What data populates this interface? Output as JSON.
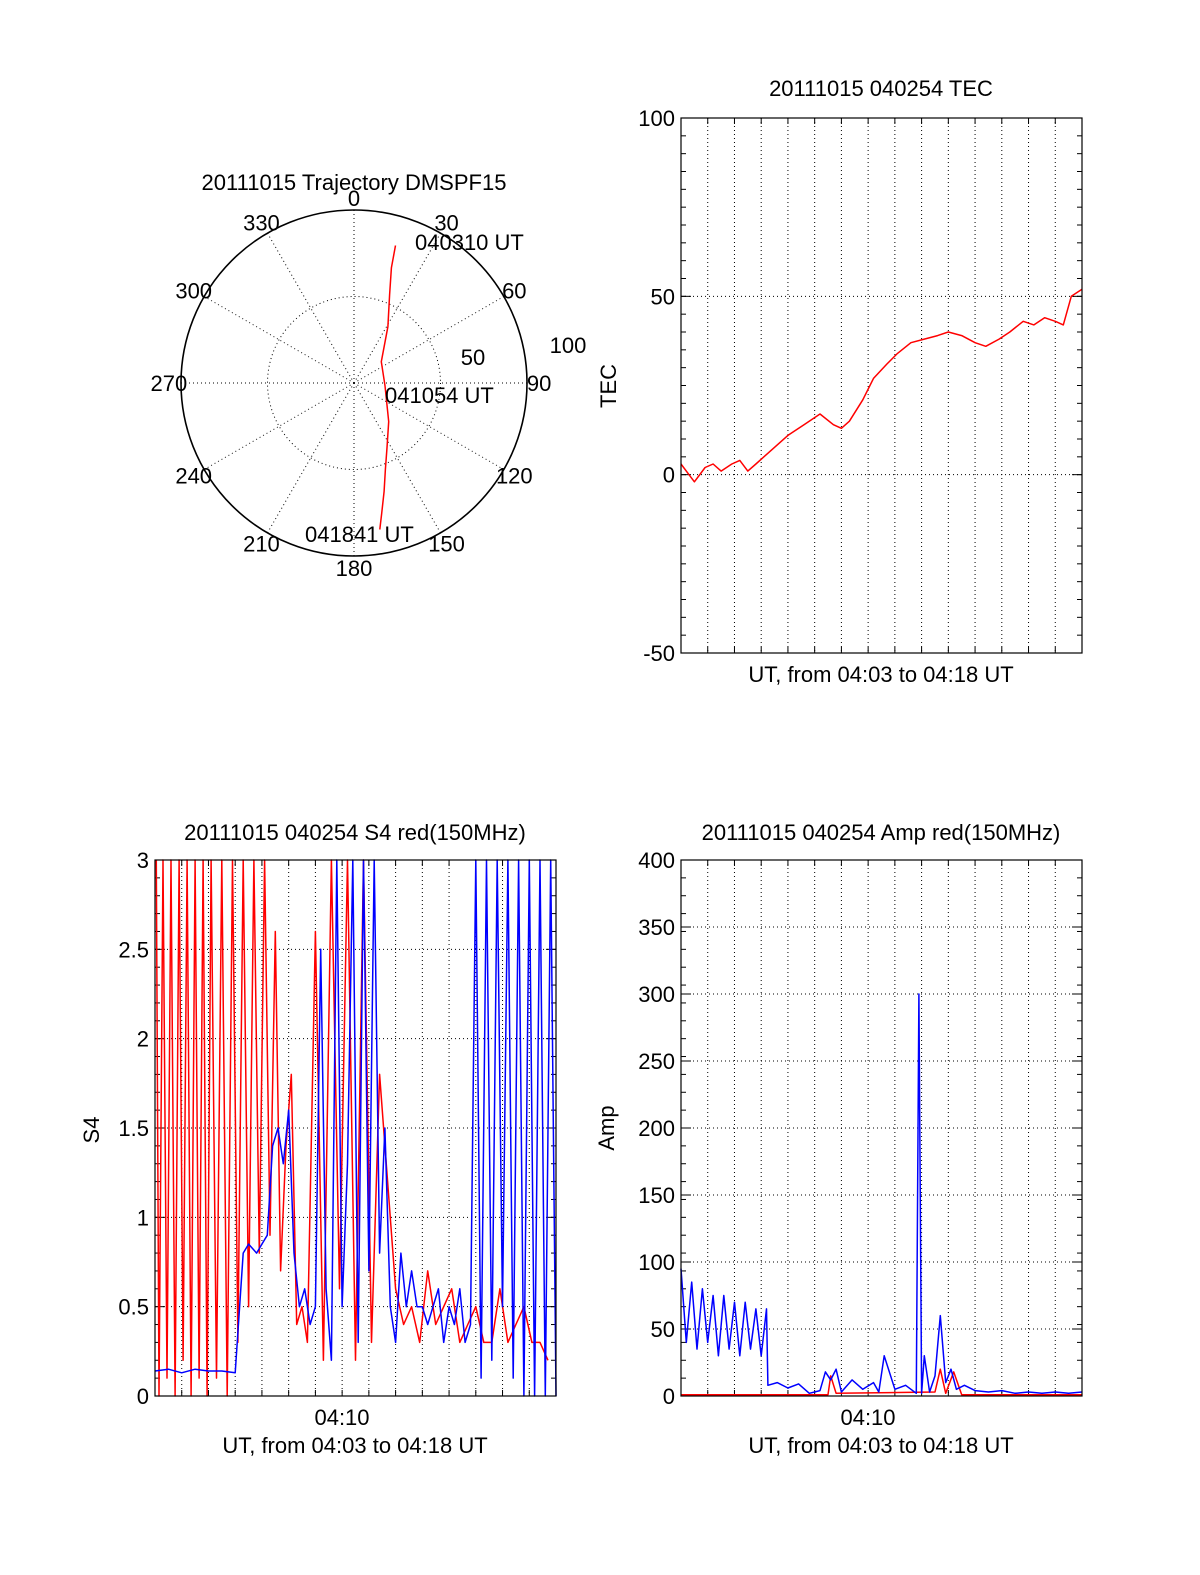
{
  "chart_data": [
    {
      "type": "polar",
      "title": "20111015 Trajectory DMSPF15",
      "azimuth_labels": [
        "0",
        "30",
        "60",
        "90",
        "120",
        "150",
        "180",
        "210",
        "240",
        "270",
        "300",
        "330"
      ],
      "azimuth_degrees": [
        0,
        30,
        60,
        90,
        120,
        150,
        180,
        210,
        240,
        270,
        300,
        330
      ],
      "radial_labels": [
        "50",
        "100"
      ],
      "radial_values": [
        50,
        100
      ],
      "rlim": [
        0,
        100
      ],
      "grid": true,
      "series": [
        {
          "color": "#ff0000",
          "points_az_r": [
            [
              16.8,
              83
            ],
            [
              18,
              70
            ],
            [
              22,
              55
            ],
            [
              31,
              38
            ],
            [
              52,
              20
            ],
            [
              95,
              18
            ],
            [
              138,
              30
            ],
            [
              153,
              42
            ],
            [
              160,
              53
            ],
            [
              164.5,
              65
            ],
            [
              168,
              77
            ],
            [
              170,
              86
            ]
          ]
        }
      ],
      "annotations": [
        {
          "text": "040310 UT",
          "az": 17,
          "r": 85
        },
        {
          "text": "041054 UT",
          "az": 93,
          "r": 39
        },
        {
          "text": "041841 UT",
          "az": 170,
          "r": 88
        }
      ]
    },
    {
      "type": "line",
      "title": "20111015 040254 TEC",
      "xlabel": "UT, from 04:03 to 04:18 UT",
      "ylabel": "TEC",
      "xlim_minutes": [
        0,
        15
      ],
      "ylim": [
        -50,
        100
      ],
      "yticks": [
        "-50",
        "0",
        "50",
        "100"
      ],
      "grid": true,
      "series": [
        {
          "color": "#ff0000",
          "x_minutes": [
            0,
            0.3,
            0.5,
            0.9,
            1.2,
            1.5,
            1.9,
            2.2,
            2.5,
            2.8,
            3.4,
            4.0,
            4.6,
            5.2,
            5.7,
            6.0,
            6.3,
            6.8,
            7.2,
            7.7,
            8.1,
            8.6,
            9.1,
            9.6,
            10.0,
            10.5,
            11.0,
            11.4,
            11.9,
            12.3,
            12.8,
            13.2,
            13.6,
            14.0,
            14.3,
            14.6,
            15.0
          ],
          "y": [
            3,
            0,
            -2,
            2,
            3,
            1,
            3,
            4,
            1,
            3,
            7,
            11,
            14,
            17,
            14,
            13,
            15,
            21,
            27,
            31,
            34,
            37,
            38,
            39,
            40,
            39,
            37,
            36,
            38,
            40,
            43,
            42,
            44,
            43,
            42,
            50,
            52
          ]
        }
      ]
    },
    {
      "type": "line",
      "title": "20111015 040254 S4 red(150MHz)",
      "xlabel": "UT, from 04:03 to 04:18 UT",
      "ylabel": "S4",
      "xlim_minutes": [
        0,
        15
      ],
      "ylim": [
        0,
        3
      ],
      "yticks": [
        "0",
        "0.5",
        "1",
        "1.5",
        "2",
        "2.5",
        "3"
      ],
      "xticks": [
        {
          "minute": 7,
          "label": "04:10"
        }
      ],
      "grid": true,
      "series": [
        {
          "color": "#ff0000",
          "x_minutes": [
            0.05,
            0.15,
            0.3,
            0.45,
            0.6,
            0.75,
            0.9,
            1.05,
            1.2,
            1.35,
            1.5,
            1.65,
            1.8,
            1.95,
            2.1,
            2.3,
            2.5,
            2.7,
            2.9,
            3.1,
            3.3,
            3.5,
            3.7,
            3.9,
            4.1,
            4.3,
            4.5,
            4.7,
            4.9,
            5.1,
            5.3,
            5.5,
            5.7,
            6.0,
            6.3,
            6.6,
            6.9,
            7.2,
            7.5,
            7.8,
            8.1,
            8.4,
            8.7,
            9.0,
            9.3,
            9.6,
            9.9,
            10.2,
            10.5,
            10.8,
            11.1,
            11.4,
            11.7,
            12.0,
            12.3,
            12.6,
            12.9,
            13.2,
            13.5,
            13.8,
            14.1,
            14.4,
            14.7
          ],
          "y": [
            3,
            0,
            3,
            0.1,
            3,
            0,
            3,
            0.2,
            3,
            0,
            3,
            0.1,
            3,
            0,
            3,
            0.1,
            3,
            0,
            3,
            0.3,
            3,
            0.5,
            3,
            0.8,
            3,
            0.9,
            2.6,
            0.7,
            1.4,
            1.8,
            0.4,
            0.5,
            0.3,
            2.6,
            0.2,
            3,
            0.6,
            3,
            0.2,
            3,
            0.3,
            1.8,
            1.2,
            0.6,
            0.4,
            0.5,
            0.3,
            0.7,
            0.4,
            0.5,
            0.6,
            0.3,
            0.4,
            0.5,
            0.3,
            0.3,
            0.6,
            0.3,
            0.4,
            0.5,
            0.3,
            0.3,
            0.2
          ]
        },
        {
          "color": "#0000ff",
          "x_minutes": [
            0,
            0.5,
            1.0,
            1.5,
            2.0,
            2.5,
            3.0,
            3.3,
            3.5,
            3.8,
            4.0,
            4.2,
            4.4,
            4.6,
            4.8,
            5.0,
            5.2,
            5.4,
            5.6,
            5.8,
            6.0,
            6.2,
            6.4,
            6.6,
            6.8,
            7.0,
            7.2,
            7.4,
            7.6,
            7.8,
            8.0,
            8.2,
            8.4,
            8.6,
            8.8,
            9.0,
            9.2,
            9.4,
            9.6,
            9.8,
            10.0,
            10.2,
            10.4,
            10.6,
            10.8,
            11.0,
            11.2,
            11.4,
            11.6,
            11.8,
            12.0,
            12.2,
            12.4,
            12.6,
            12.8,
            13.0,
            13.2,
            13.4,
            13.6,
            13.8,
            14.0,
            14.2,
            14.4,
            14.6,
            14.8,
            15.0
          ],
          "y": [
            0.14,
            0.15,
            0.13,
            0.15,
            0.14,
            0.14,
            0.13,
            0.8,
            0.85,
            0.8,
            0.85,
            0.9,
            1.4,
            1.5,
            1.3,
            1.6,
            0.8,
            0.5,
            0.6,
            0.4,
            0.5,
            2.5,
            0.6,
            0.2,
            3,
            0.5,
            1.3,
            3,
            0.3,
            3,
            0.7,
            3,
            0.8,
            1.5,
            0.5,
            0.3,
            0.8,
            0.5,
            0.7,
            0.5,
            0.5,
            0.4,
            0.5,
            0.6,
            0.3,
            0.5,
            0.4,
            0.6,
            0.3,
            0.4,
            3,
            0.1,
            3,
            0.2,
            3,
            0.5,
            3,
            0.1,
            3,
            0,
            3,
            0,
            3,
            0,
            3,
            0
          ]
        }
      ]
    },
    {
      "type": "line",
      "title": "20111015 040254 Amp red(150MHz)",
      "xlabel": "UT, from 04:03 to 04:18 UT",
      "ylabel": "Amp",
      "xlim_minutes": [
        0,
        15
      ],
      "ylim": [
        0,
        400
      ],
      "yticks": [
        "0",
        "50",
        "100",
        "150",
        "200",
        "250",
        "300",
        "350",
        "400"
      ],
      "xticks": [
        {
          "minute": 7,
          "label": "04:10"
        }
      ],
      "grid": true,
      "series": [
        {
          "color": "#ff0000",
          "x_minutes": [
            0,
            3.2,
            5.5,
            5.6,
            5.8,
            9.5,
            9.7,
            9.9,
            10.2,
            10.5,
            15.0
          ],
          "y": [
            1,
            1,
            1,
            15,
            2,
            3,
            20,
            2,
            18,
            1,
            1
          ]
        },
        {
          "color": "#0000ff",
          "x_minutes": [
            0,
            0.2,
            0.4,
            0.6,
            0.8,
            1.0,
            1.2,
            1.4,
            1.6,
            1.8,
            2.0,
            2.2,
            2.4,
            2.6,
            2.8,
            3.0,
            3.2,
            3.25,
            3.6,
            4.0,
            4.4,
            4.8,
            5.2,
            5.4,
            5.6,
            5.8,
            6.0,
            6.4,
            6.8,
            7.2,
            7.4,
            7.6,
            8.0,
            8.4,
            8.8,
            8.9,
            9.0,
            9.1,
            9.3,
            9.5,
            9.7,
            9.9,
            10.1,
            10.3,
            10.6,
            11.0,
            11.5,
            12.0,
            12.5,
            13.0,
            13.5,
            14.0,
            14.5,
            15.0
          ],
          "y": [
            95,
            40,
            85,
            35,
            80,
            40,
            75,
            30,
            75,
            35,
            70,
            30,
            70,
            35,
            65,
            30,
            65,
            8,
            10,
            6,
            9,
            2,
            4,
            18,
            12,
            20,
            3,
            12,
            5,
            10,
            3,
            30,
            5,
            8,
            2,
            300,
            2,
            30,
            3,
            15,
            60,
            10,
            20,
            5,
            8,
            4,
            3,
            4,
            2,
            3,
            2,
            3,
            2,
            3
          ]
        }
      ]
    }
  ]
}
